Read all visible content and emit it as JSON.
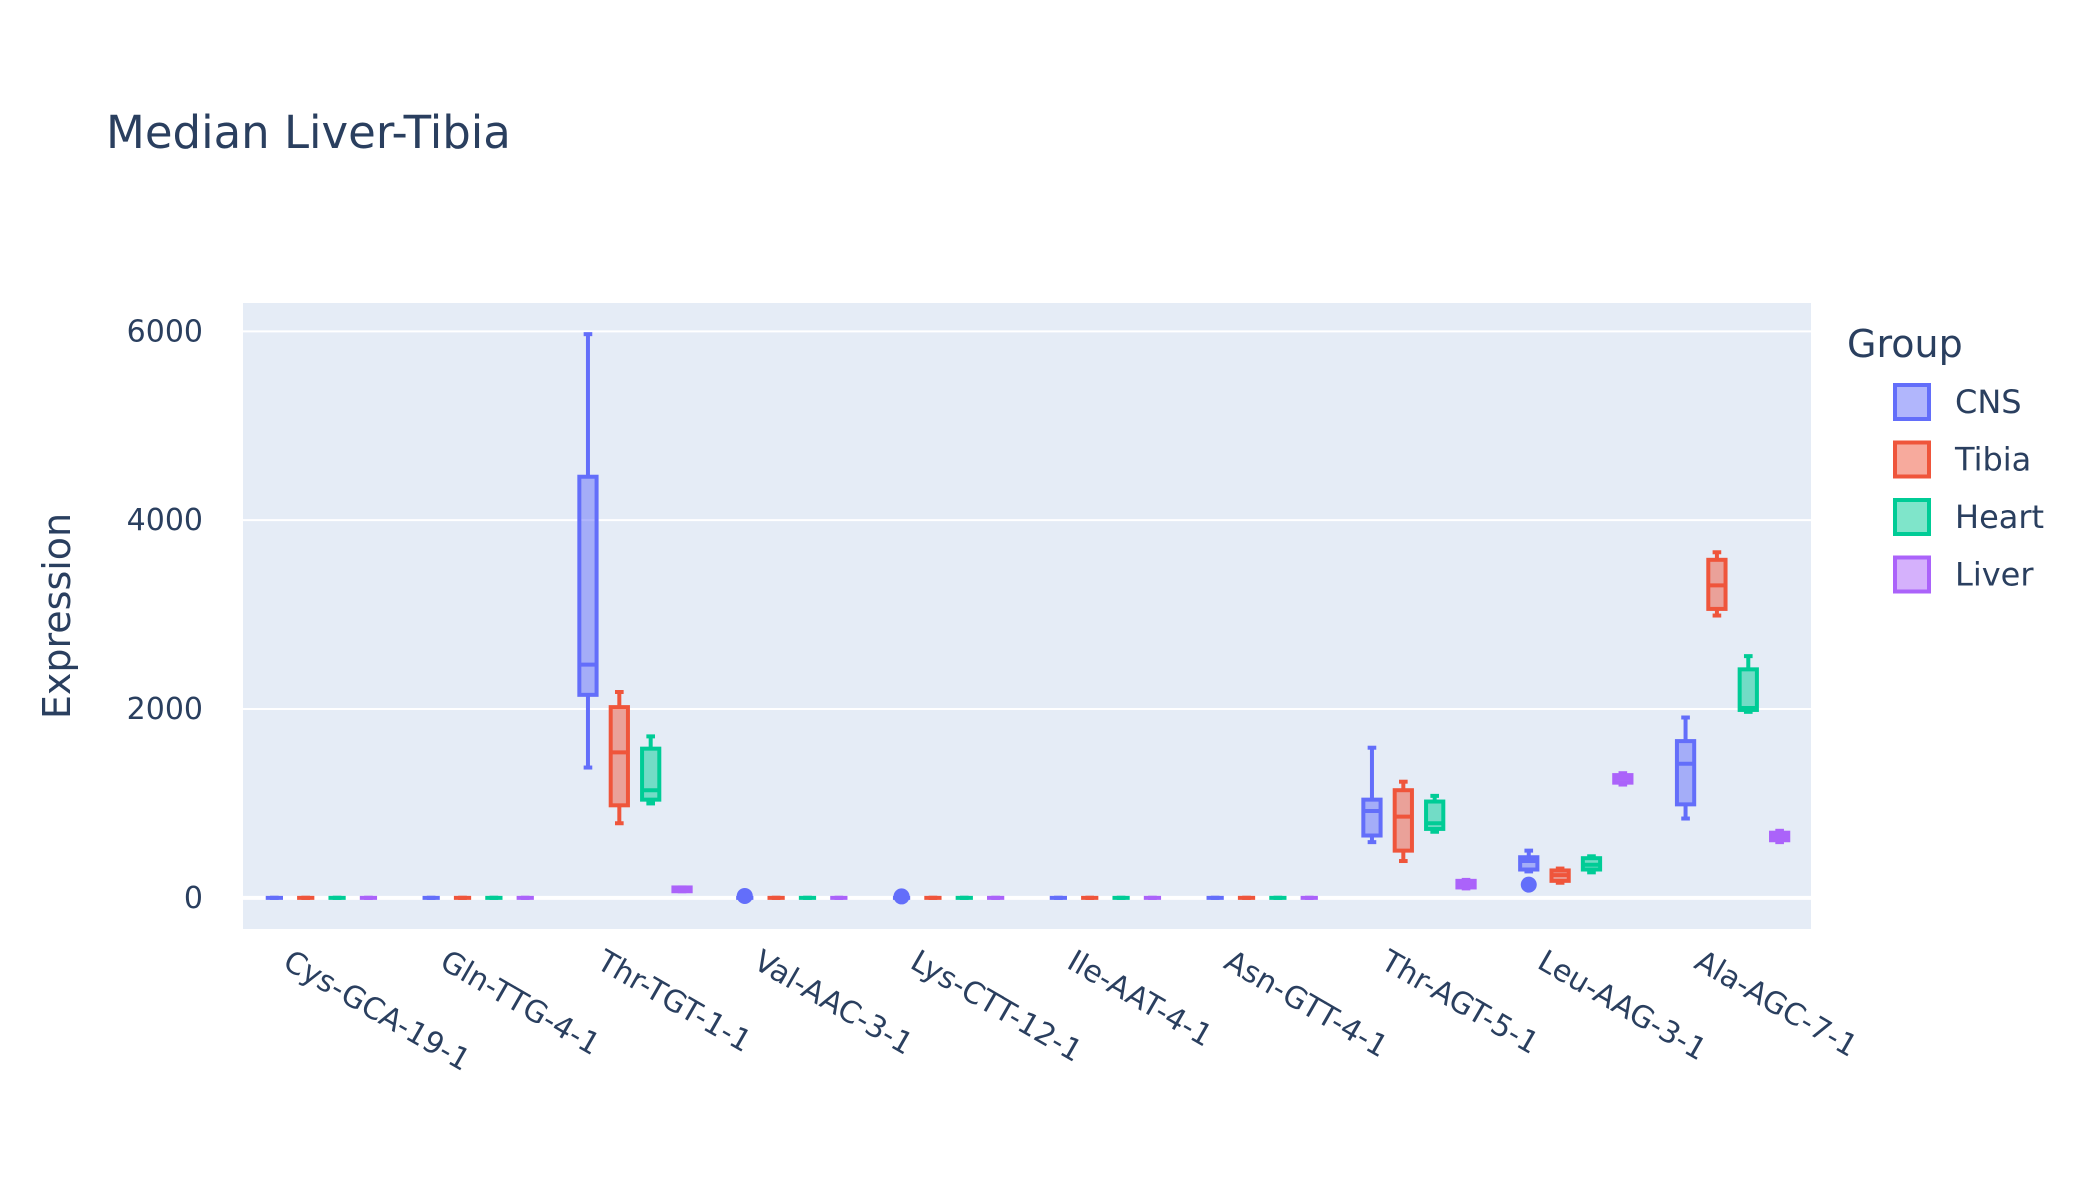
{
  "chart_data": {
    "type": "box",
    "title": "Median Liver-Tibia",
    "xlabel": "",
    "ylabel": "Expression",
    "ylim": [
      -330,
      6300
    ],
    "yticks": [
      0,
      2000,
      4000,
      6000
    ],
    "grid": true,
    "legend_title": "Group",
    "legend_position": "right",
    "categories": [
      "Cys-GCA-19-1",
      "Gln-TTG-4-1",
      "Thr-TGT-1-1",
      "Val-AAC-3-1",
      "Lys-CTT-12-1",
      "Ile-AAT-4-1",
      "Asn-GTT-4-1",
      "Thr-AGT-5-1",
      "Leu-AAG-3-1",
      "Ala-AGC-7-1"
    ],
    "series": [
      {
        "name": "CNS",
        "color": "#636efa",
        "boxes": [
          {
            "min": 0,
            "q1": 0,
            "median": 0,
            "q3": 0,
            "max": 0,
            "outliers": []
          },
          {
            "min": 0,
            "q1": 0,
            "median": 0,
            "q3": 0,
            "max": 0,
            "outliers": []
          },
          {
            "min": 1380,
            "q1": 2150,
            "median": 2470,
            "q3": 4460,
            "max": 5970,
            "outliers": []
          },
          {
            "min": 0,
            "q1": 0,
            "median": 0,
            "q3": 0,
            "max": 0,
            "outliers": [
              20
            ]
          },
          {
            "min": 0,
            "q1": 0,
            "median": 0,
            "q3": 0,
            "max": 0,
            "outliers": [
              15
            ]
          },
          {
            "min": 0,
            "q1": 0,
            "median": 0,
            "q3": 0,
            "max": 0,
            "outliers": []
          },
          {
            "min": 0,
            "q1": 0,
            "median": 0,
            "q3": 0,
            "max": 0,
            "outliers": []
          },
          {
            "min": 590,
            "q1": 660,
            "median": 920,
            "q3": 1040,
            "max": 1590,
            "outliers": []
          },
          {
            "min": 280,
            "q1": 300,
            "median": 390,
            "q3": 430,
            "max": 500,
            "outliers": [
              140
            ]
          },
          {
            "min": 840,
            "q1": 990,
            "median": 1420,
            "q3": 1660,
            "max": 1910,
            "outliers": []
          }
        ]
      },
      {
        "name": "Tibia",
        "color": "#ef553b",
        "boxes": [
          {
            "min": 0,
            "q1": 0,
            "median": 0,
            "q3": 0,
            "max": 0,
            "outliers": []
          },
          {
            "min": 0,
            "q1": 0,
            "median": 0,
            "q3": 0,
            "max": 0,
            "outliers": []
          },
          {
            "min": 790,
            "q1": 980,
            "median": 1540,
            "q3": 2020,
            "max": 2180,
            "outliers": []
          },
          {
            "min": 0,
            "q1": 0,
            "median": 0,
            "q3": 0,
            "max": 0,
            "outliers": []
          },
          {
            "min": 0,
            "q1": 0,
            "median": 0,
            "q3": 0,
            "max": 0,
            "outliers": []
          },
          {
            "min": 0,
            "q1": 0,
            "median": 0,
            "q3": 0,
            "max": 0,
            "outliers": []
          },
          {
            "min": 0,
            "q1": 0,
            "median": 0,
            "q3": 0,
            "max": 0,
            "outliers": []
          },
          {
            "min": 390,
            "q1": 500,
            "median": 860,
            "q3": 1140,
            "max": 1230,
            "outliers": []
          },
          {
            "min": 160,
            "q1": 180,
            "median": 240,
            "q3": 290,
            "max": 310,
            "outliers": []
          },
          {
            "min": 2990,
            "q1": 3060,
            "median": 3310,
            "q3": 3580,
            "max": 3660,
            "outliers": []
          }
        ]
      },
      {
        "name": "Heart",
        "color": "#00cc96",
        "boxes": [
          {
            "min": 0,
            "q1": 0,
            "median": 0,
            "q3": 0,
            "max": 0,
            "outliers": []
          },
          {
            "min": 0,
            "q1": 0,
            "median": 0,
            "q3": 0,
            "max": 0,
            "outliers": []
          },
          {
            "min": 1000,
            "q1": 1040,
            "median": 1140,
            "q3": 1580,
            "max": 1710,
            "outliers": []
          },
          {
            "min": 0,
            "q1": 0,
            "median": 0,
            "q3": 0,
            "max": 0,
            "outliers": []
          },
          {
            "min": 0,
            "q1": 0,
            "median": 0,
            "q3": 0,
            "max": 0,
            "outliers": []
          },
          {
            "min": 0,
            "q1": 0,
            "median": 0,
            "q3": 0,
            "max": 0,
            "outliers": []
          },
          {
            "min": 0,
            "q1": 0,
            "median": 0,
            "q3": 0,
            "max": 0,
            "outliers": []
          },
          {
            "min": 700,
            "q1": 730,
            "median": 790,
            "q3": 1020,
            "max": 1080,
            "outliers": []
          },
          {
            "min": 270,
            "q1": 300,
            "median": 350,
            "q3": 420,
            "max": 440,
            "outliers": []
          },
          {
            "min": 1970,
            "q1": 1990,
            "median": 2010,
            "q3": 2420,
            "max": 2560,
            "outliers": []
          }
        ]
      },
      {
        "name": "Liver",
        "color": "#ab63fa",
        "boxes": [
          {
            "min": 0,
            "q1": 0,
            "median": 0,
            "q3": 0,
            "max": 0,
            "outliers": []
          },
          {
            "min": 0,
            "q1": 0,
            "median": 0,
            "q3": 0,
            "max": 0,
            "outliers": []
          },
          {
            "min": 70,
            "q1": 70,
            "median": 90,
            "q3": 110,
            "max": 110,
            "outliers": []
          },
          {
            "min": 0,
            "q1": 0,
            "median": 0,
            "q3": 0,
            "max": 0,
            "outliers": []
          },
          {
            "min": 0,
            "q1": 0,
            "median": 0,
            "q3": 0,
            "max": 0,
            "outliers": []
          },
          {
            "min": 0,
            "q1": 0,
            "median": 0,
            "q3": 0,
            "max": 0,
            "outliers": []
          },
          {
            "min": 0,
            "q1": 0,
            "median": 0,
            "q3": 0,
            "max": 0,
            "outliers": []
          },
          {
            "min": 100,
            "q1": 110,
            "median": 150,
            "q3": 180,
            "max": 190,
            "outliers": []
          },
          {
            "min": 1200,
            "q1": 1220,
            "median": 1260,
            "q3": 1300,
            "max": 1320,
            "outliers": []
          },
          {
            "min": 590,
            "q1": 610,
            "median": 650,
            "q3": 690,
            "max": 710,
            "outliers": []
          }
        ]
      }
    ]
  }
}
